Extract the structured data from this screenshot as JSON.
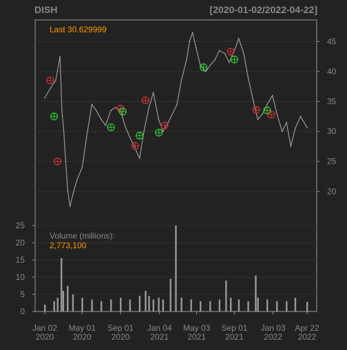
{
  "header": {
    "symbol": "DISH",
    "date_range": "[2020-01-02/2022-04-22]"
  },
  "price_panel": {
    "last_label": "Last 30.629999"
  },
  "volume_panel": {
    "label": "Volume (millions):",
    "last_volume": "2,773,100"
  },
  "colors": {
    "background": "#222222",
    "frame": "#999999",
    "grid": "#333333",
    "series": "#999999",
    "accent_text": "#ff9900",
    "header_text": "#888888",
    "buy_marker": "#33cc33",
    "sell_marker": "#cc3333"
  },
  "chart_data": [
    {
      "type": "line",
      "name": "price",
      "y_axis_side": "right",
      "ylim": [
        14.3,
        48.6
      ],
      "yticks": [
        20,
        25,
        30,
        35,
        40,
        45
      ],
      "x_domain": [
        "2020-01-02",
        "2022-04-22"
      ],
      "x": [
        "2020-01-02",
        "2020-01-20",
        "2020-02-06",
        "2020-02-20",
        "2020-02-26",
        "2020-03-03",
        "2020-03-09",
        "2020-03-16",
        "2020-03-23",
        "2020-04-01",
        "2020-04-15",
        "2020-05-01",
        "2020-05-15",
        "2020-06-01",
        "2020-06-15",
        "2020-07-01",
        "2020-07-15",
        "2020-08-01",
        "2020-08-15",
        "2020-09-01",
        "2020-09-15",
        "2020-10-01",
        "2020-10-15",
        "2020-11-01",
        "2020-11-15",
        "2020-12-01",
        "2020-12-15",
        "2021-01-01",
        "2021-01-15",
        "2021-02-01",
        "2021-02-15",
        "2021-03-01",
        "2021-03-15",
        "2021-04-01",
        "2021-04-10",
        "2021-04-20",
        "2021-05-01",
        "2021-05-15",
        "2021-06-01",
        "2021-06-15",
        "2021-07-01",
        "2021-07-15",
        "2021-08-01",
        "2021-08-15",
        "2021-09-01",
        "2021-09-15",
        "2021-10-01",
        "2021-10-15",
        "2021-11-01",
        "2021-11-15",
        "2021-12-01",
        "2021-12-15",
        "2022-01-01",
        "2022-01-15",
        "2022-02-01",
        "2022-02-15",
        "2022-03-01",
        "2022-03-15",
        "2022-04-01",
        "2022-04-22"
      ],
      "values": [
        35.6,
        37.2,
        38.5,
        42.5,
        33.5,
        30.0,
        25.0,
        20.0,
        17.5,
        19.5,
        22.0,
        24.0,
        29.0,
        34.5,
        33.5,
        32.0,
        31.0,
        33.5,
        34.0,
        33.5,
        31.0,
        29.0,
        27.5,
        25.5,
        30.0,
        34.0,
        36.5,
        32.0,
        30.0,
        31.5,
        33.0,
        34.5,
        38.5,
        42.0,
        45.0,
        46.5,
        44.0,
        41.0,
        40.0,
        41.0,
        42.0,
        43.5,
        43.0,
        41.5,
        43.5,
        45.5,
        43.0,
        39.0,
        35.0,
        32.0,
        33.0,
        34.5,
        36.0,
        33.0,
        30.0,
        31.5,
        27.5,
        30.5,
        32.5,
        30.63
      ],
      "markers": [
        {
          "date": "2020-01-20",
          "price": 38.5,
          "kind": "sell"
        },
        {
          "date": "2020-02-01",
          "price": 32.5,
          "kind": "buy"
        },
        {
          "date": "2020-02-12",
          "price": 25.0,
          "kind": "sell"
        },
        {
          "date": "2020-08-01",
          "price": 30.7,
          "kind": "buy"
        },
        {
          "date": "2020-09-01",
          "price": 33.8,
          "kind": "sell"
        },
        {
          "date": "2020-09-08",
          "price": 33.3,
          "kind": "buy"
        },
        {
          "date": "2020-10-18",
          "price": 27.6,
          "kind": "sell"
        },
        {
          "date": "2020-11-01",
          "price": 29.3,
          "kind": "buy"
        },
        {
          "date": "2020-11-20",
          "price": 35.2,
          "kind": "sell"
        },
        {
          "date": "2021-01-02",
          "price": 29.8,
          "kind": "buy"
        },
        {
          "date": "2021-01-20",
          "price": 31.0,
          "kind": "sell"
        },
        {
          "date": "2021-05-25",
          "price": 40.7,
          "kind": "buy"
        },
        {
          "date": "2021-08-20",
          "price": 43.3,
          "kind": "sell"
        },
        {
          "date": "2021-09-01",
          "price": 42.0,
          "kind": "buy"
        },
        {
          "date": "2021-11-10",
          "price": 33.6,
          "kind": "sell"
        },
        {
          "date": "2021-12-15",
          "price": 33.5,
          "kind": "buy"
        },
        {
          "date": "2021-12-28",
          "price": 32.8,
          "kind": "sell"
        }
      ]
    },
    {
      "type": "bar",
      "name": "volume",
      "y_axis_side": "left",
      "ylim": [
        0,
        25
      ],
      "yticks": [
        0,
        5,
        10,
        15,
        20,
        25
      ],
      "x_domain": [
        "2020-01-02",
        "2022-04-22"
      ],
      "x": [
        "2020-01-02",
        "2020-02-01",
        "2020-02-12",
        "2020-02-24",
        "2020-03-01",
        "2020-03-15",
        "2020-04-01",
        "2020-05-01",
        "2020-06-01",
        "2020-07-01",
        "2020-08-01",
        "2020-09-01",
        "2020-10-01",
        "2020-11-01",
        "2020-11-20",
        "2020-12-01",
        "2020-12-15",
        "2021-01-01",
        "2021-01-15",
        "2021-02-08",
        "2021-02-25",
        "2021-03-15",
        "2021-04-15",
        "2021-05-15",
        "2021-06-15",
        "2021-07-15",
        "2021-08-05",
        "2021-08-20",
        "2021-09-15",
        "2021-10-15",
        "2021-11-08",
        "2021-11-15",
        "2021-12-15",
        "2022-01-15",
        "2022-02-15",
        "2022-03-15",
        "2022-04-22"
      ],
      "values": [
        2.0,
        3.0,
        4.0,
        15.5,
        6.0,
        7.5,
        5.0,
        4.0,
        3.5,
        3.0,
        3.5,
        4.0,
        3.5,
        4.5,
        6.0,
        4.5,
        3.5,
        4.0,
        3.5,
        9.5,
        25.0,
        4.0,
        3.5,
        3.0,
        3.0,
        3.5,
        9.0,
        4.0,
        3.5,
        3.0,
        10.5,
        4.0,
        3.5,
        3.0,
        3.0,
        4.0,
        2.8
      ]
    }
  ],
  "x_axis": {
    "ticks": [
      {
        "date": "2020-01-02",
        "line1": "Jan 02",
        "line2": "2020"
      },
      {
        "date": "2020-05-01",
        "line1": "May 01",
        "line2": "2020"
      },
      {
        "date": "2020-09-01",
        "line1": "Sep 01",
        "line2": "2020"
      },
      {
        "date": "2021-01-04",
        "line1": "Jan 04",
        "line2": "2021"
      },
      {
        "date": "2021-05-03",
        "line1": "May 03",
        "line2": "2021"
      },
      {
        "date": "2021-09-01",
        "line1": "Sep 01",
        "line2": "2021"
      },
      {
        "date": "2022-01-03",
        "line1": "Jan 03",
        "line2": "2022"
      },
      {
        "date": "2022-04-22",
        "line1": "Apr 22",
        "line2": "2022"
      }
    ]
  }
}
